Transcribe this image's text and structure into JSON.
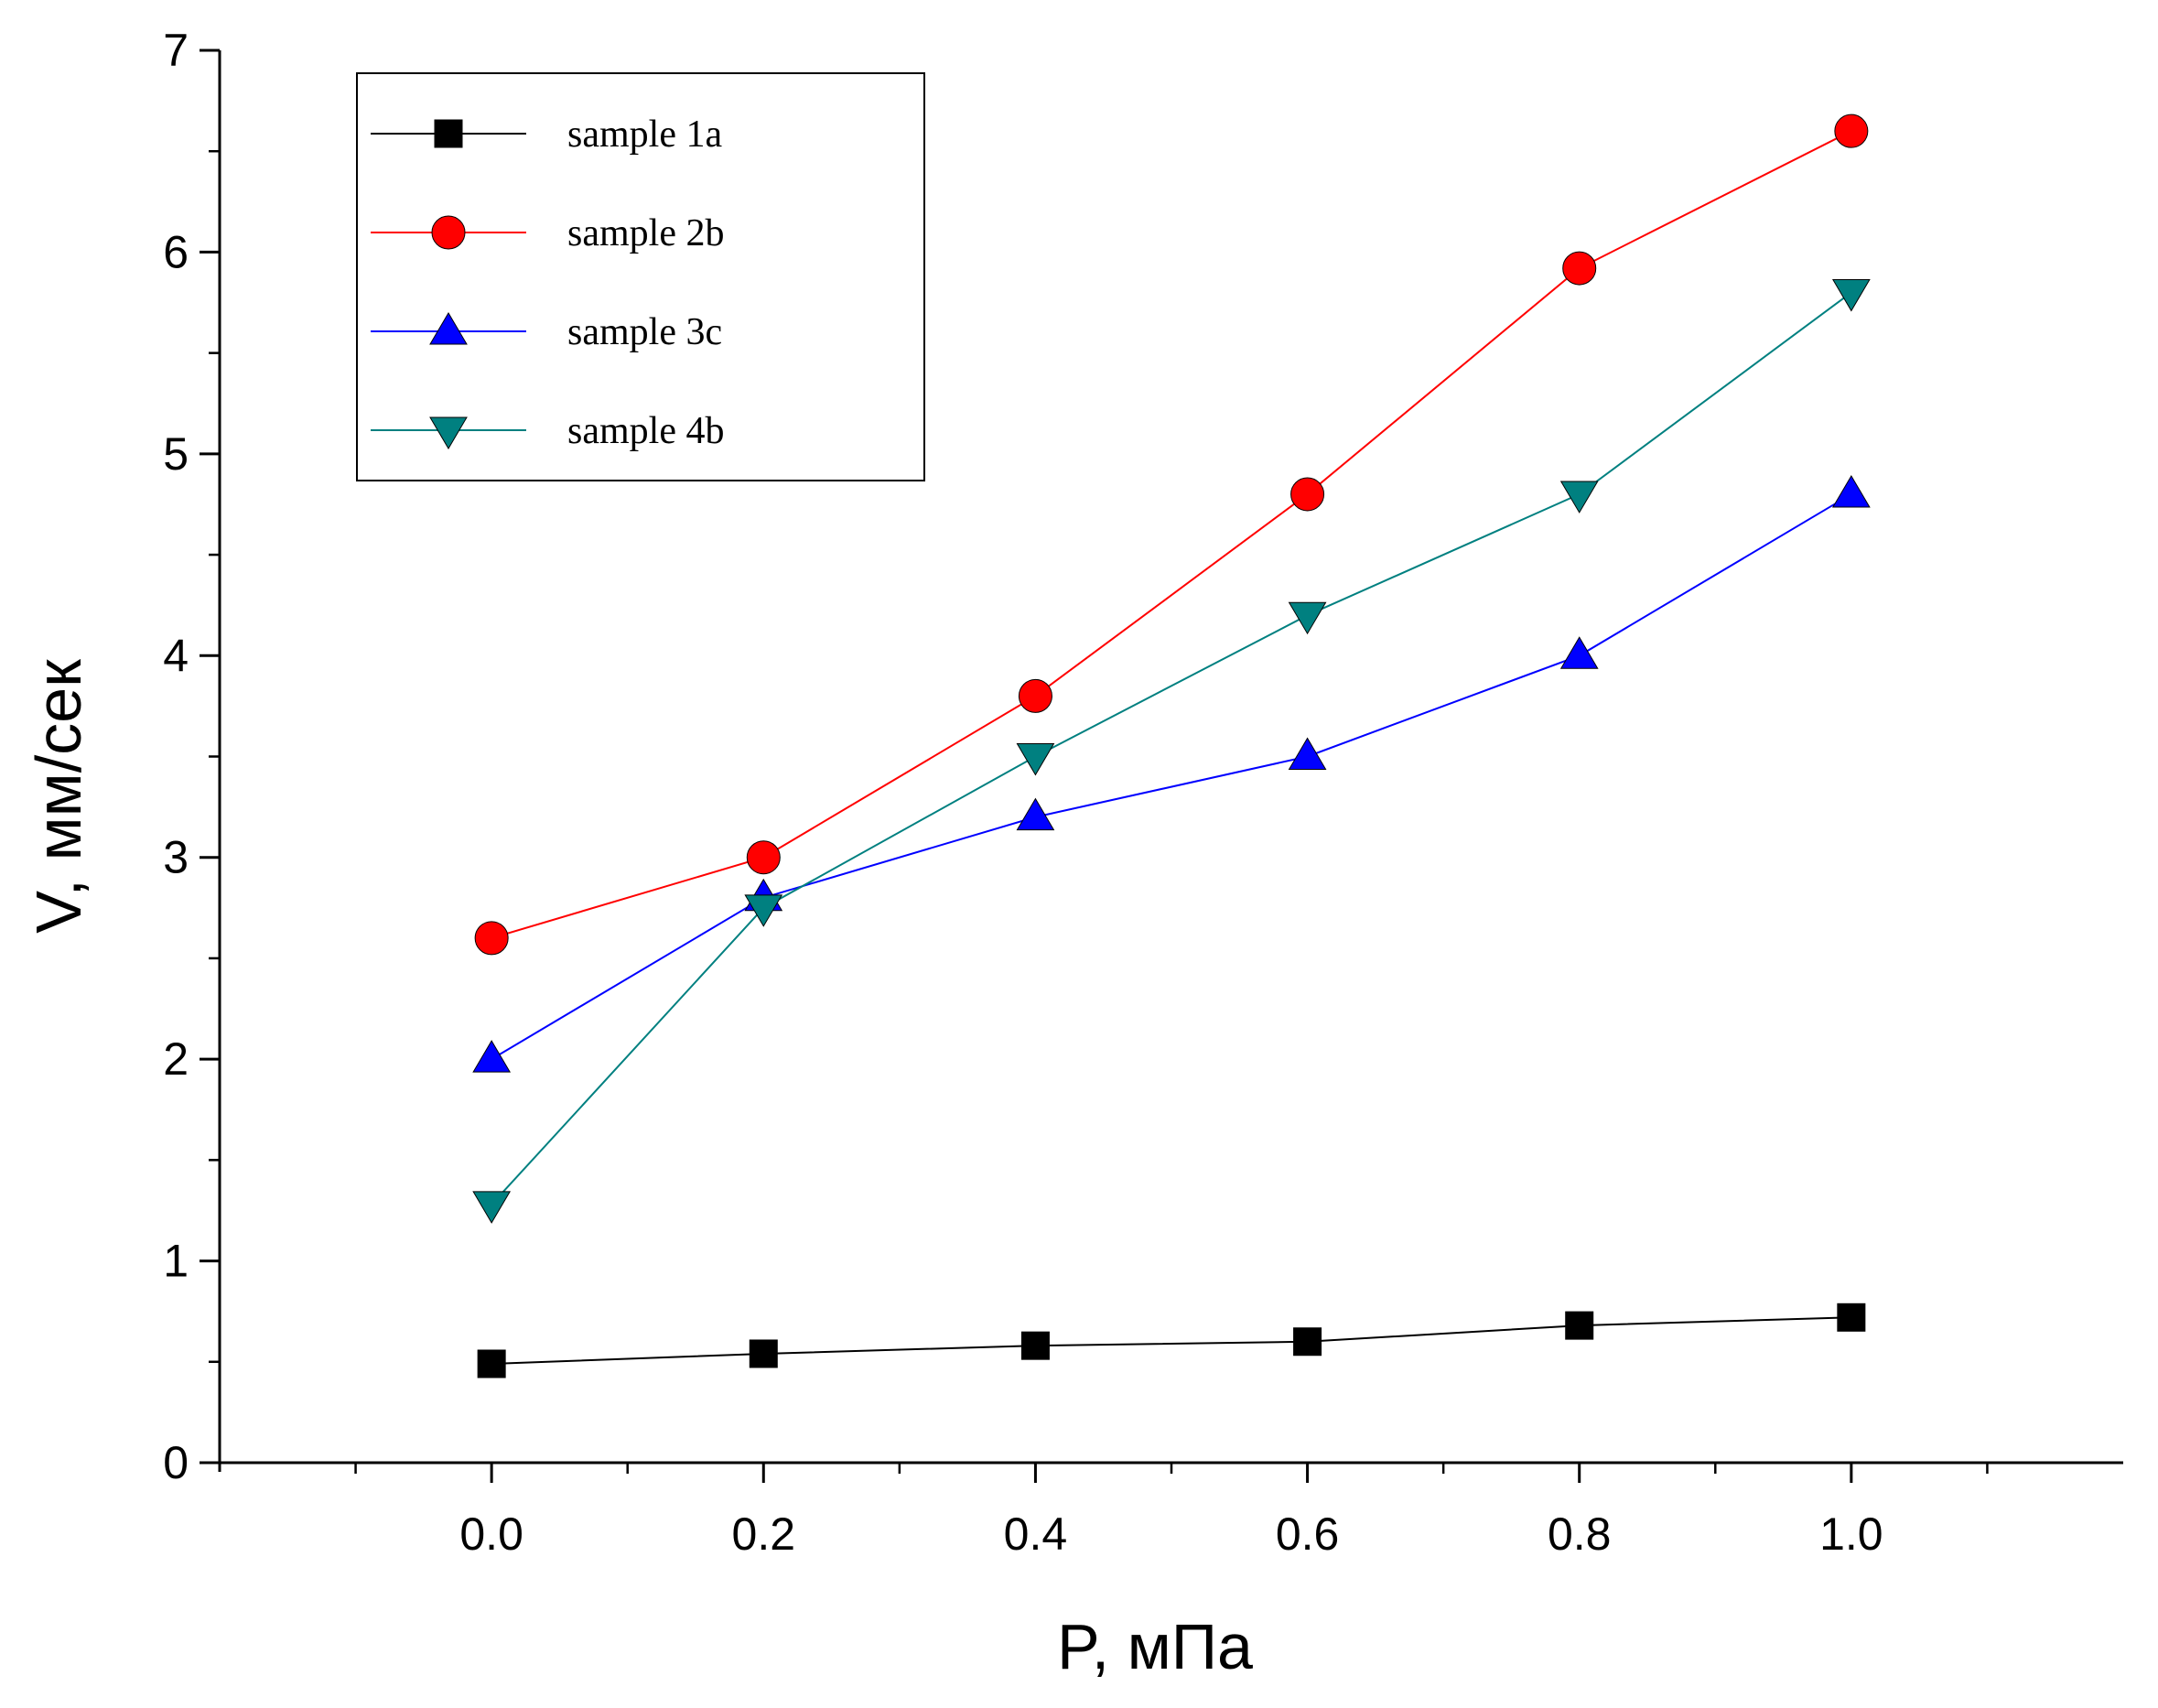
{
  "chart_data": {
    "type": "line",
    "title": "",
    "xlabel": "P, мПа",
    "ylabel": "V, мм/сек",
    "x": [
      0.0,
      0.2,
      0.4,
      0.6,
      0.8,
      1.0
    ],
    "xlim": [
      -0.2,
      1.2
    ],
    "ylim": [
      0,
      7
    ],
    "xticks": [
      0.0,
      0.2,
      0.4,
      0.6,
      0.8,
      1.0
    ],
    "xtick_labels": [
      "0.0",
      "0.2",
      "0.4",
      "0.6",
      "0.8",
      "1.0"
    ],
    "yticks": [
      0,
      1,
      2,
      3,
      4,
      5,
      6,
      7
    ],
    "ytick_labels": [
      "0",
      "1",
      "2",
      "3",
      "4",
      "5",
      "6",
      "7"
    ],
    "grid": false,
    "legend_position": "top-left",
    "series": [
      {
        "name": "sample 1a",
        "marker": "square",
        "color": "#000000",
        "values": [
          0.49,
          0.54,
          0.58,
          0.6,
          0.68,
          0.72
        ]
      },
      {
        "name": "sample 2b",
        "marker": "circle",
        "color": "#ff0000",
        "values": [
          2.6,
          3.0,
          3.8,
          4.8,
          5.92,
          6.6
        ]
      },
      {
        "name": "sample 3c",
        "marker": "triangle-up",
        "color": "#0000ff",
        "values": [
          2.0,
          2.8,
          3.2,
          3.5,
          4.0,
          4.8
        ]
      },
      {
        "name": "sample 4b",
        "marker": "triangle-down",
        "color": "#008080",
        "values": [
          1.28,
          2.75,
          3.5,
          4.2,
          4.8,
          5.8
        ]
      }
    ]
  }
}
